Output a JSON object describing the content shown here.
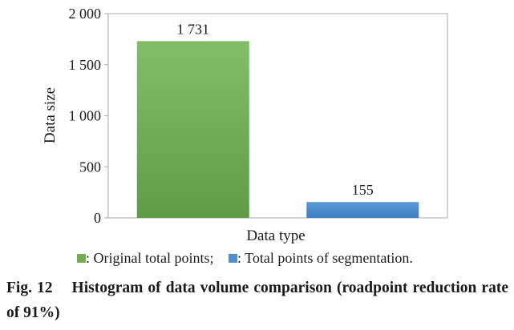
{
  "chart_data": {
    "type": "bar",
    "categories": [
      "Original total points",
      "Total points of segmentation"
    ],
    "values": [
      1731,
      155
    ],
    "data_labels": [
      "1 731",
      "155"
    ],
    "xlabel": "Data type",
    "ylabel": "Data size",
    "ylim": [
      0,
      2000
    ],
    "yticks": [
      0,
      500,
      1000,
      1500,
      2000
    ],
    "ytick_labels": [
      "0",
      "500",
      "1 000",
      "1 500",
      "2 000"
    ],
    "colors": [
      "#72ad55",
      "#4e8fcf"
    ],
    "grid": false,
    "legend": {
      "placement": "bottom",
      "items": [
        {
          "label": ": Original total points;",
          "color": "#72ad55"
        },
        {
          "label": ": Total points of segmentation.",
          "color": "#4e8fcf"
        }
      ]
    }
  },
  "caption": {
    "label": "Fig. 12",
    "text": "Histogram of data volume comparison (roadpoint reduction rate of 91%)"
  }
}
